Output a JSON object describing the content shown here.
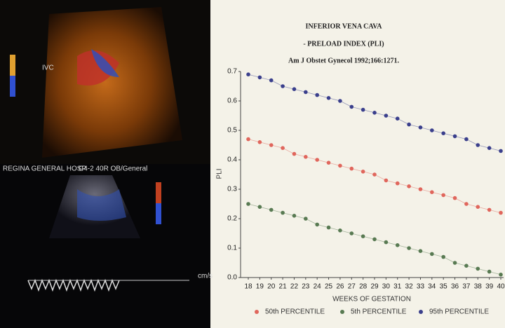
{
  "chart_data": {
    "type": "line",
    "title": "INFERIOR VENA CAVA",
    "subtitle": "- PRELOAD INDEX (PLI)",
    "source": "Am J Obstet Gynecol 1992;166:1271.",
    "x_label": "WEEKS OF GESTATION",
    "y_label": "PLI",
    "x": [
      18,
      19,
      20,
      21,
      22,
      23,
      24,
      25,
      26,
      27,
      28,
      29,
      30,
      31,
      32,
      33,
      34,
      35,
      36,
      37,
      38,
      39,
      40
    ],
    "xlim": [
      18,
      40
    ],
    "xticks": [
      18,
      19,
      20,
      21,
      22,
      23,
      24,
      25,
      26,
      27,
      28,
      29,
      30,
      31,
      32,
      33,
      34,
      35,
      36,
      37,
      38,
      39,
      40
    ],
    "ylim": [
      0,
      0.7
    ],
    "yticks": [
      {
        "value": 0,
        "label": "0.0"
      },
      0.1,
      0.2,
      0.3,
      0.4,
      0.5,
      0.6,
      0.7
    ],
    "series": [
      {
        "name": "50th PERCENTILE",
        "color": "#e0665c",
        "values": [
          0.47,
          0.46,
          0.45,
          0.44,
          0.42,
          0.41,
          0.4,
          0.39,
          0.38,
          0.37,
          0.36,
          0.35,
          0.33,
          0.32,
          0.31,
          0.3,
          0.29,
          0.28,
          0.27,
          0.25,
          0.24,
          0.23,
          0.22
        ]
      },
      {
        "name": "5th PERCENTILE",
        "color": "#587a52",
        "values": [
          0.25,
          0.24,
          0.23,
          0.22,
          0.21,
          0.2,
          0.18,
          0.17,
          0.16,
          0.15,
          0.14,
          0.13,
          0.12,
          0.11,
          0.1,
          0.09,
          0.08,
          0.07,
          0.05,
          0.04,
          0.03,
          0.02,
          0.01
        ]
      },
      {
        "name": "95th PERCENTILE",
        "color": "#3a3f8c",
        "values": [
          0.69,
          0.68,
          0.67,
          0.65,
          0.64,
          0.63,
          0.62,
          0.61,
          0.6,
          0.58,
          0.57,
          0.56,
          0.55,
          0.54,
          0.52,
          0.51,
          0.5,
          0.49,
          0.48,
          0.47,
          0.45,
          0.44,
          0.43
        ]
      }
    ],
    "legend": "bottom",
    "image_text": [
      "IVC",
      "REGINA GENERAL HOSP",
      "C4-2 40R OB/General",
      "cm/s"
    ]
  }
}
